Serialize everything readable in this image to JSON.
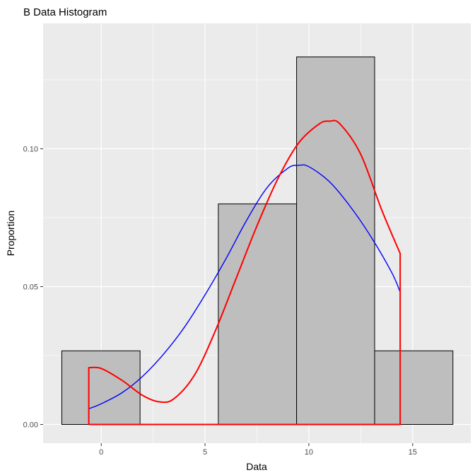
{
  "chart_data": {
    "type": "histogram",
    "title": "B Data Histogram",
    "xlabel": "Data",
    "ylabel": "Proportion",
    "xlim": [
      -2.8,
      17.8
    ],
    "ylim": [
      -0.0068,
      0.1455
    ],
    "x_ticks": [
      0,
      5,
      10,
      15
    ],
    "x_tick_labels": [
      "0",
      "5",
      "10",
      "15"
    ],
    "y_ticks": [
      0.0,
      0.05,
      0.1
    ],
    "y_tick_labels": [
      "0.00",
      "0.05",
      "0.10"
    ],
    "grid": true,
    "bins": [
      {
        "x0": -1.9,
        "x1": 1.87,
        "value": 0.0267
      },
      {
        "x0": 5.64,
        "x1": 9.41,
        "value": 0.08
      },
      {
        "x0": 9.41,
        "x1": 13.17,
        "value": 0.1333
      },
      {
        "x0": 13.17,
        "x1": 16.94,
        "value": 0.0267
      }
    ],
    "bar_fill": "#bebebe",
    "bar_stroke": "#000000",
    "series": [
      {
        "color": "#0000ff",
        "x": [
          -0.6,
          0.0,
          1.0,
          2.0,
          3.0,
          4.0,
          5.0,
          6.0,
          7.0,
          8.0,
          9.0,
          9.5,
          10.0,
          11.0,
          12.0,
          13.0,
          14.0,
          14.4
        ],
        "y": [
          0.0057,
          0.0075,
          0.0115,
          0.0175,
          0.0255,
          0.0352,
          0.047,
          0.06,
          0.074,
          0.086,
          0.093,
          0.094,
          0.0935,
          0.088,
          0.079,
          0.068,
          0.055,
          0.048
        ]
      },
      {
        "color": "#ff0000",
        "x": [
          -0.6,
          -0.6,
          0.0,
          1.0,
          2.0,
          2.8,
          3.5,
          4.5,
          5.5,
          6.5,
          7.5,
          8.5,
          9.5,
          10.5,
          11.0,
          11.5,
          12.5,
          13.5,
          14.4,
          14.4,
          -0.6
        ],
        "y": [
          0.0,
          0.0206,
          0.0203,
          0.016,
          0.0105,
          0.0082,
          0.0093,
          0.018,
          0.034,
          0.053,
          0.072,
          0.089,
          0.102,
          0.109,
          0.11,
          0.109,
          0.098,
          0.078,
          0.062,
          0.0,
          0.0
        ]
      }
    ]
  }
}
